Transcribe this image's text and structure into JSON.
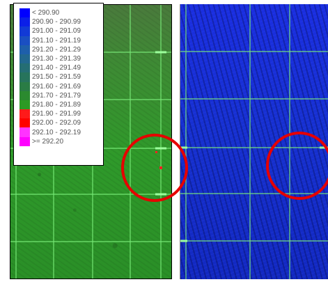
{
  "legend": {
    "entries": [
      {
        "label": "< 290.90",
        "color": "#0000ff"
      },
      {
        "label": "290.90 - 290.99",
        "color": "#0b1fe8"
      },
      {
        "label": "291.00 - 291.09",
        "color": "#123ad6"
      },
      {
        "label": "291.10 - 291.19",
        "color": "#1a4fc2"
      },
      {
        "label": "291.20 - 291.29",
        "color": "#1e5fab"
      },
      {
        "label": "291.30 - 291.39",
        "color": "#22688f"
      },
      {
        "label": "291.40 - 291.49",
        "color": "#256e74"
      },
      {
        "label": "291.50 - 291.59",
        "color": "#27745c"
      },
      {
        "label": "291.60 - 291.69",
        "color": "#2a7c45"
      },
      {
        "label": "291.70 - 291.79",
        "color": "#2b8a2f"
      },
      {
        "label": "291.80 - 291.89",
        "color": "#2c9a24"
      },
      {
        "label": "291.90 - 291.99",
        "color": "#ff1a1a"
      },
      {
        "label": "292.00 - 292.09",
        "color": "#ff0000"
      },
      {
        "label": "292.10 - 292.19",
        "color": "#ff33ff"
      },
      {
        "label": ">= 292.20",
        "color": "#ff00ff"
      }
    ]
  },
  "colors": {
    "grid_line": "#7cf07c",
    "highlight": "#e60000"
  }
}
